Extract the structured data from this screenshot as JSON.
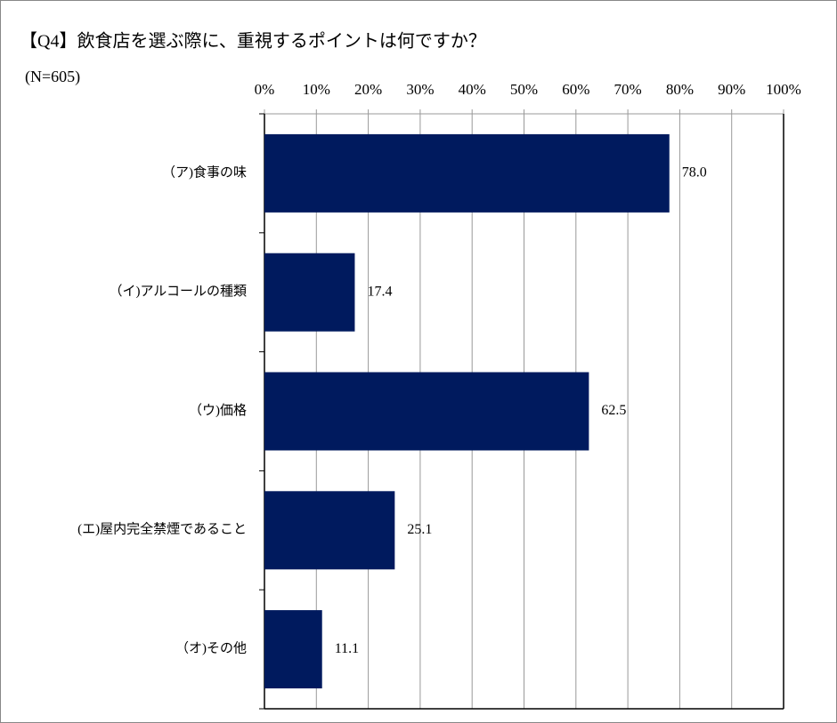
{
  "chart_data": {
    "type": "bar",
    "orientation": "horizontal",
    "title": "【Q4】飲食店を選ぶ際に、重視するポイントは何ですか？",
    "subtitle": "(N=605)",
    "categories": [
      "（ア)食事の味",
      "（イ)アルコールの種類",
      "（ウ)価格",
      "(エ)屋内完全禁煙であること",
      "（オ)その他"
    ],
    "values": [
      78.0,
      17.4,
      62.5,
      25.1,
      11.1
    ],
    "value_labels": [
      "78.0",
      "17.4",
      "62.5",
      "25.1",
      "11.1"
    ],
    "color": "#001a5e",
    "xlim": [
      0,
      100
    ],
    "xticks": [
      {
        "value": 0,
        "label": "0%"
      },
      {
        "value": 10,
        "label": "10%"
      },
      {
        "value": 20,
        "label": "20%"
      },
      {
        "value": 30,
        "label": "30%"
      },
      {
        "value": 40,
        "label": "40%"
      },
      {
        "value": 50,
        "label": "50%"
      },
      {
        "value": 60,
        "label": "60%"
      },
      {
        "value": 70,
        "label": "70%"
      },
      {
        "value": 80,
        "label": "80%"
      },
      {
        "value": 90,
        "label": "90%"
      },
      {
        "value": 100,
        "label": "100%"
      }
    ],
    "grid": true
  }
}
